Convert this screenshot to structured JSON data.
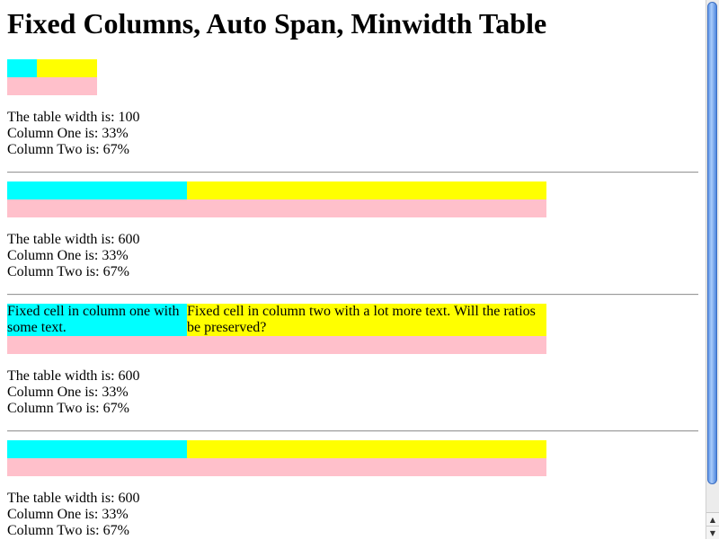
{
  "page": {
    "title": "Fixed Columns, Auto Span, Minwidth Table"
  },
  "colors": {
    "column_one": "#00ffff",
    "column_two": "#ffff00",
    "span_row": "#ffc0cb"
  },
  "sections": [
    {
      "table_width": "The table width is: 100",
      "col_one": "Column One is: 33%",
      "col_two": "Column Two is: 67%"
    },
    {
      "table_width": "The table width is: 600",
      "col_one": "Column One is: 33%",
      "col_two": "Column Two is: 67%"
    },
    {
      "cell_one_text": "Fixed cell in column one with some text.",
      "cell_two_text": "Fixed cell in column two with a lot more text. Will the ratios be preserved?",
      "table_width": "The table width is: 600",
      "col_one": "Column One is: 33%",
      "col_two": "Column Two is: 67%"
    },
    {
      "table_width": "The table width is: 600",
      "col_one": "Column One is: 33%",
      "col_two": "Column Two is: 67%"
    }
  ],
  "scrollbar": {
    "up_arrow": "▲",
    "down_arrow": "▼"
  }
}
